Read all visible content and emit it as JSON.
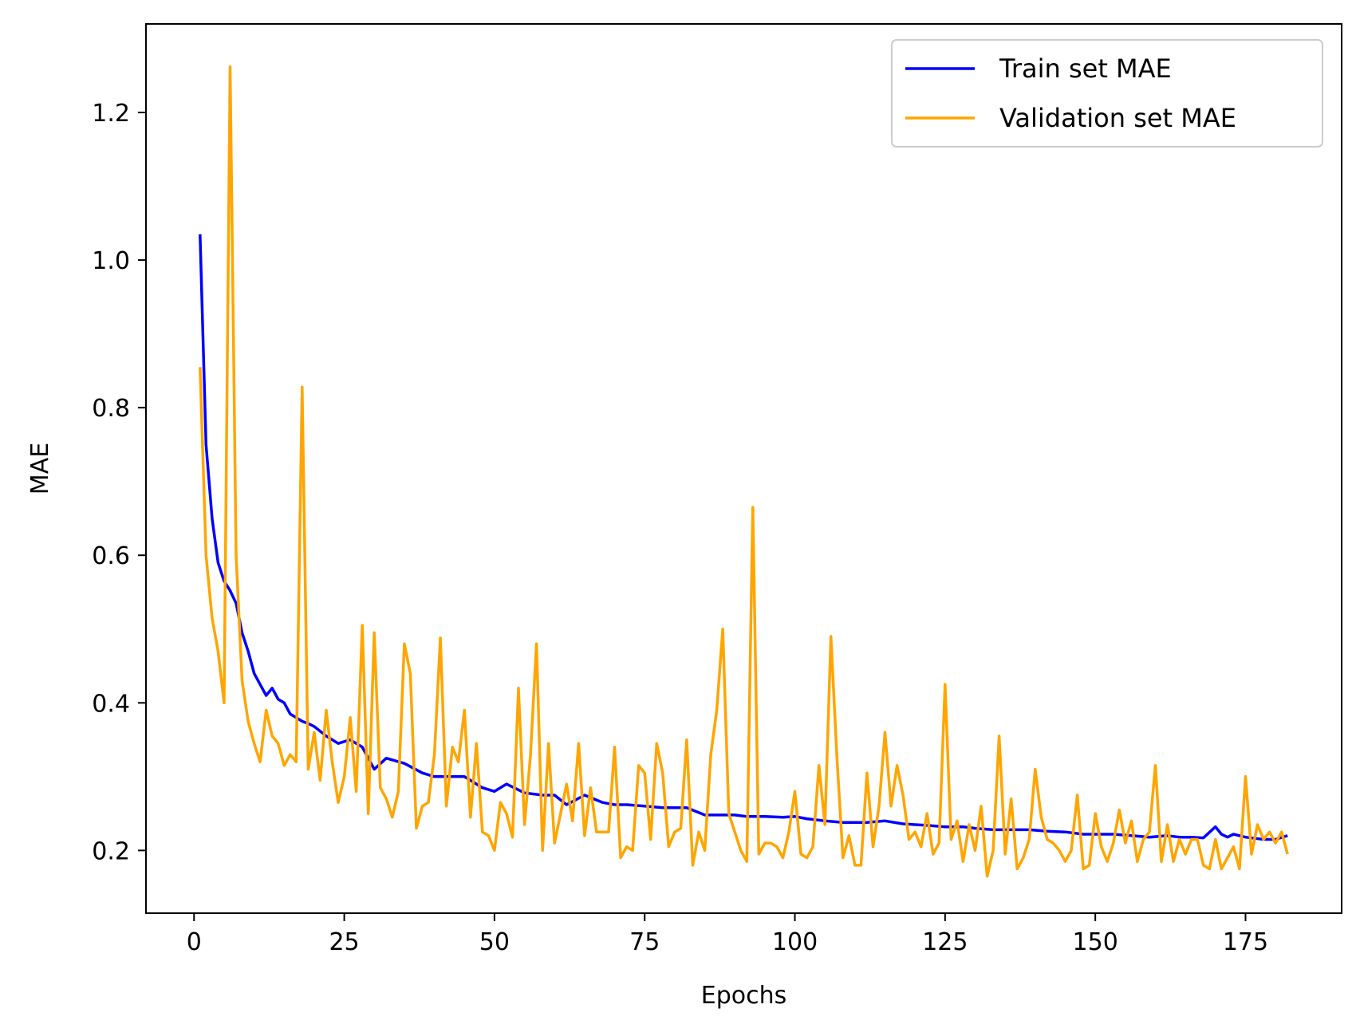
{
  "chart_data": {
    "type": "line",
    "title": "",
    "xlabel": "Epochs",
    "ylabel": "MAE",
    "xlim": [
      -8,
      191
    ],
    "ylim": [
      0.115,
      1.32
    ],
    "xticks": [
      0,
      25,
      50,
      75,
      100,
      125,
      150,
      175
    ],
    "yticks": [
      0.2,
      0.4,
      0.6,
      0.8,
      1.0,
      1.2
    ],
    "ytick_labels": [
      "0.2",
      "0.4",
      "0.6",
      "0.8",
      "1.0",
      "1.2"
    ],
    "grid": false,
    "legend_position": "top-right",
    "series": [
      {
        "name": "Train set MAE",
        "color": "#0000ff",
        "x": [
          1,
          2,
          3,
          4,
          5,
          6,
          7,
          8,
          9,
          10,
          11,
          12,
          13,
          14,
          15,
          16,
          17,
          18,
          19,
          20,
          22,
          24,
          26,
          28,
          30,
          32,
          35,
          38,
          40,
          42,
          45,
          48,
          50,
          52,
          55,
          58,
          60,
          62,
          65,
          68,
          70,
          72,
          75,
          78,
          80,
          82,
          85,
          88,
          90,
          92,
          95,
          98,
          100,
          102,
          105,
          108,
          110,
          112,
          115,
          118,
          120,
          122,
          125,
          128,
          130,
          133,
          136,
          139,
          142,
          145,
          148,
          150,
          153,
          156,
          159,
          162,
          164,
          166,
          168,
          170,
          171,
          172,
          173,
          175,
          178,
          180,
          182
        ],
        "y": [
          1.035,
          0.75,
          0.65,
          0.59,
          0.565,
          0.552,
          0.535,
          0.495,
          0.47,
          0.44,
          0.425,
          0.41,
          0.42,
          0.405,
          0.4,
          0.385,
          0.38,
          0.375,
          0.372,
          0.368,
          0.355,
          0.345,
          0.35,
          0.34,
          0.31,
          0.325,
          0.318,
          0.305,
          0.3,
          0.3,
          0.3,
          0.285,
          0.28,
          0.29,
          0.278,
          0.275,
          0.275,
          0.262,
          0.275,
          0.265,
          0.262,
          0.262,
          0.26,
          0.258,
          0.258,
          0.258,
          0.248,
          0.248,
          0.248,
          0.246,
          0.246,
          0.245,
          0.246,
          0.243,
          0.24,
          0.238,
          0.238,
          0.238,
          0.24,
          0.236,
          0.235,
          0.234,
          0.232,
          0.232,
          0.23,
          0.228,
          0.228,
          0.228,
          0.226,
          0.225,
          0.222,
          0.222,
          0.222,
          0.22,
          0.218,
          0.22,
          0.218,
          0.218,
          0.217,
          0.232,
          0.222,
          0.218,
          0.222,
          0.218,
          0.215,
          0.215,
          0.22
        ]
      },
      {
        "name": "Validation set MAE",
        "color": "#ffa500",
        "x": [
          1,
          2,
          3,
          4,
          5,
          6,
          7,
          8,
          9,
          10,
          11,
          12,
          13,
          14,
          15,
          16,
          17,
          18,
          19,
          20,
          21,
          22,
          23,
          24,
          25,
          26,
          27,
          28,
          29,
          30,
          31,
          32,
          33,
          34,
          35,
          36,
          37,
          38,
          39,
          40,
          41,
          42,
          43,
          44,
          45,
          46,
          47,
          48,
          49,
          50,
          51,
          52,
          53,
          54,
          55,
          56,
          57,
          58,
          59,
          60,
          61,
          62,
          63,
          64,
          65,
          66,
          67,
          68,
          69,
          70,
          71,
          72,
          73,
          74,
          75,
          76,
          77,
          78,
          79,
          80,
          81,
          82,
          83,
          84,
          85,
          86,
          87,
          88,
          89,
          90,
          91,
          92,
          93,
          94,
          95,
          96,
          97,
          98,
          99,
          100,
          101,
          102,
          103,
          104,
          105,
          106,
          107,
          108,
          109,
          110,
          111,
          112,
          113,
          114,
          115,
          116,
          117,
          118,
          119,
          120,
          121,
          122,
          123,
          124,
          125,
          126,
          127,
          128,
          129,
          130,
          131,
          132,
          133,
          134,
          135,
          136,
          137,
          138,
          139,
          140,
          141,
          142,
          143,
          144,
          145,
          146,
          147,
          148,
          149,
          150,
          151,
          152,
          153,
          154,
          155,
          156,
          157,
          158,
          159,
          160,
          161,
          162,
          163,
          164,
          165,
          166,
          167,
          168,
          169,
          170,
          171,
          172,
          173,
          174,
          175,
          176,
          177,
          178,
          179,
          180,
          181,
          182
        ],
        "y": [
          0.855,
          0.6,
          0.515,
          0.47,
          0.4,
          1.262,
          0.6,
          0.43,
          0.375,
          0.345,
          0.32,
          0.39,
          0.355,
          0.345,
          0.315,
          0.33,
          0.32,
          0.828,
          0.31,
          0.36,
          0.295,
          0.39,
          0.32,
          0.265,
          0.3,
          0.38,
          0.28,
          0.505,
          0.25,
          0.495,
          0.285,
          0.27,
          0.245,
          0.28,
          0.48,
          0.44,
          0.23,
          0.26,
          0.265,
          0.33,
          0.488,
          0.26,
          0.34,
          0.32,
          0.39,
          0.245,
          0.345,
          0.225,
          0.22,
          0.2,
          0.265,
          0.25,
          0.218,
          0.42,
          0.235,
          0.33,
          0.48,
          0.2,
          0.345,
          0.21,
          0.25,
          0.29,
          0.24,
          0.345,
          0.22,
          0.285,
          0.225,
          0.225,
          0.225,
          0.34,
          0.19,
          0.205,
          0.2,
          0.315,
          0.305,
          0.215,
          0.345,
          0.305,
          0.205,
          0.225,
          0.23,
          0.35,
          0.18,
          0.225,
          0.2,
          0.33,
          0.39,
          0.5,
          0.25,
          0.225,
          0.2,
          0.185,
          0.665,
          0.195,
          0.21,
          0.21,
          0.205,
          0.19,
          0.225,
          0.28,
          0.195,
          0.19,
          0.205,
          0.315,
          0.235,
          0.49,
          0.325,
          0.19,
          0.22,
          0.18,
          0.18,
          0.305,
          0.205,
          0.26,
          0.36,
          0.26,
          0.315,
          0.275,
          0.215,
          0.225,
          0.205,
          0.25,
          0.195,
          0.21,
          0.425,
          0.215,
          0.24,
          0.185,
          0.235,
          0.2,
          0.26,
          0.165,
          0.2,
          0.355,
          0.195,
          0.27,
          0.175,
          0.19,
          0.215,
          0.31,
          0.245,
          0.215,
          0.21,
          0.2,
          0.185,
          0.2,
          0.275,
          0.175,
          0.18,
          0.25,
          0.205,
          0.185,
          0.21,
          0.255,
          0.21,
          0.24,
          0.185,
          0.215,
          0.225,
          0.315,
          0.185,
          0.235,
          0.185,
          0.215,
          0.195,
          0.215,
          0.215,
          0.18,
          0.175,
          0.215,
          0.175,
          0.19,
          0.205,
          0.175,
          0.3,
          0.195,
          0.235,
          0.215,
          0.225,
          0.21,
          0.225,
          0.195
        ]
      }
    ]
  }
}
